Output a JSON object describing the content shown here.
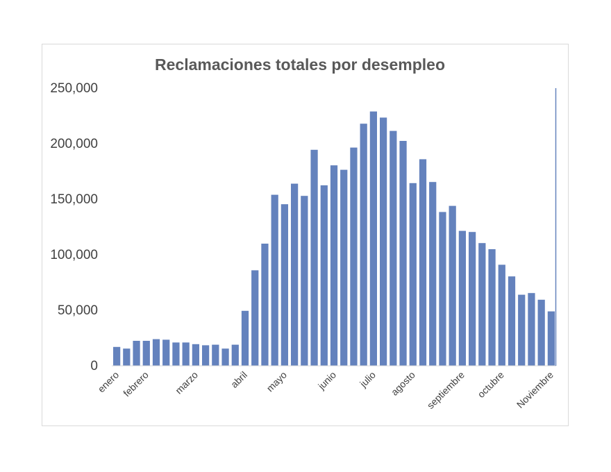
{
  "chart_data": {
    "type": "bar",
    "title": "Reclamaciones totales por desempleo",
    "xlabel": "",
    "ylabel": "",
    "ylim": [
      0,
      250000
    ],
    "y_ticks": [
      "0",
      "50,000",
      "100,000",
      "150,000",
      "200,000",
      "250,000"
    ],
    "y_tick_values": [
      0,
      50000,
      100000,
      150000,
      200000,
      250000
    ],
    "month_labels": [
      {
        "label": "enero",
        "bar_index": 0
      },
      {
        "label": "febrero",
        "bar_index": 3
      },
      {
        "label": "marzo",
        "bar_index": 8
      },
      {
        "label": "abril",
        "bar_index": 13
      },
      {
        "label": "mayo",
        "bar_index": 17
      },
      {
        "label": "junio",
        "bar_index": 22
      },
      {
        "label": "julio",
        "bar_index": 26
      },
      {
        "label": "agosto",
        "bar_index": 30
      },
      {
        "label": "septiembre",
        "bar_index": 35
      },
      {
        "label": "octubre",
        "bar_index": 39
      },
      {
        "label": "Noviembre",
        "bar_index": 44
      }
    ],
    "values": [
      17000,
      15500,
      22500,
      22500,
      24000,
      23500,
      21000,
      21000,
      19500,
      18500,
      19000,
      15500,
      19000,
      49500,
      86000,
      110000,
      154000,
      145500,
      164000,
      153000,
      194500,
      162500,
      180500,
      176500,
      196500,
      218000,
      229000,
      223500,
      211500,
      202500,
      164500,
      186000,
      165500,
      138500,
      144000,
      121500,
      120500,
      110500,
      105000,
      91000,
      80500,
      64000,
      65500,
      59500,
      49000
    ],
    "grid": false,
    "legend": "none",
    "bar_color": "#6482bd"
  }
}
